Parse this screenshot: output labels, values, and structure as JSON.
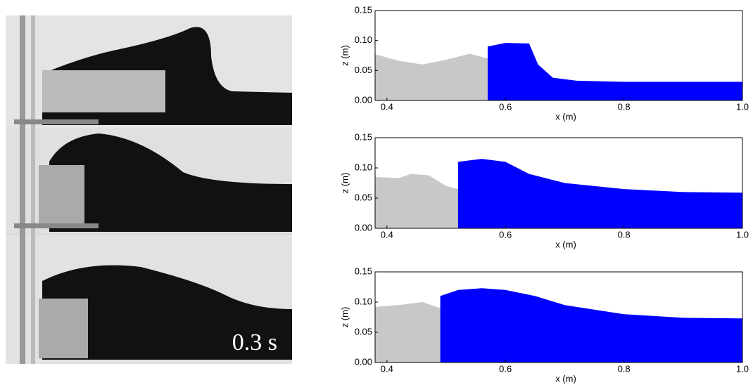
{
  "photo": {
    "label": "0.3 s"
  },
  "chart_data": [
    {
      "type": "area",
      "xlabel": "x (m)",
      "ylabel": "z (m)",
      "x": [
        0.38,
        0.42,
        0.46,
        0.5,
        0.54,
        0.57,
        0.6,
        0.64,
        0.655,
        0.68,
        0.72,
        0.8,
        0.9,
        1.0
      ],
      "series": [
        {
          "color": "#c8c8c8",
          "values": [
            0.077,
            0.066,
            0.06,
            0.068,
            0.078,
            0.07,
            null,
            null,
            null,
            null,
            null,
            null,
            null,
            null
          ]
        },
        {
          "color": "#0000ff",
          "values": [
            null,
            null,
            null,
            null,
            null,
            0.09,
            0.096,
            0.095,
            0.06,
            0.038,
            0.033,
            0.031,
            0.031,
            0.031
          ]
        }
      ],
      "xlim": [
        0.38,
        1.0
      ],
      "ylim": [
        0,
        0.15
      ],
      "xticks": [
        0.4,
        0.6,
        0.8,
        {
          "value": 1.0,
          "label": "1.0"
        }
      ],
      "yticks": [
        {
          "value": 0,
          "label": "0.00"
        },
        {
          "value": 0.05,
          "label": "0.05"
        },
        {
          "value": 0.1,
          "label": "0.10"
        },
        {
          "value": 0.15,
          "label": "0.15"
        }
      ]
    },
    {
      "type": "area",
      "xlabel": "x (m)",
      "ylabel": "z (m)",
      "x": [
        0.38,
        0.42,
        0.44,
        0.47,
        0.5,
        0.52,
        0.56,
        0.6,
        0.64,
        0.7,
        0.8,
        0.9,
        1.0
      ],
      "series": [
        {
          "color": "#c8c8c8",
          "values": [
            0.085,
            0.083,
            0.09,
            0.088,
            0.07,
            0.065,
            null,
            null,
            null,
            null,
            null,
            null,
            null
          ]
        },
        {
          "color": "#0000ff",
          "values": [
            null,
            null,
            null,
            null,
            null,
            0.11,
            0.115,
            0.11,
            0.09,
            0.075,
            0.065,
            0.06,
            0.059
          ]
        }
      ],
      "xlim": [
        0.38,
        1.0
      ],
      "ylim": [
        0,
        0.15
      ],
      "xticks": [
        0.4,
        0.6,
        0.8,
        {
          "value": 1.0,
          "label": "1.0"
        }
      ],
      "yticks": [
        {
          "value": 0,
          "label": "0.00"
        },
        {
          "value": 0.05,
          "label": "0.05"
        },
        {
          "value": 0.1,
          "label": "0.10"
        },
        {
          "value": 0.15,
          "label": "0.15"
        }
      ]
    },
    {
      "type": "area",
      "xlabel": "x (m)",
      "ylabel": "z (m)",
      "x": [
        0.38,
        0.42,
        0.46,
        0.49,
        0.52,
        0.56,
        0.6,
        0.65,
        0.7,
        0.8,
        0.9,
        1.0
      ],
      "series": [
        {
          "color": "#c8c8c8",
          "values": [
            0.092,
            0.095,
            0.1,
            0.09,
            null,
            null,
            null,
            null,
            null,
            null,
            null,
            null
          ]
        },
        {
          "color": "#0000ff",
          "values": [
            null,
            null,
            null,
            0.11,
            0.12,
            0.123,
            0.12,
            0.11,
            0.095,
            0.08,
            0.074,
            0.073
          ]
        }
      ],
      "xlim": [
        0.38,
        1.0
      ],
      "ylim": [
        0,
        0.15
      ],
      "xticks": [
        0.4,
        0.6,
        0.8,
        {
          "value": 1.0,
          "label": "1.0"
        }
      ],
      "yticks": [
        {
          "value": 0,
          "label": "0.00"
        },
        {
          "value": 0.05,
          "label": "0.05"
        },
        {
          "value": 0.1,
          "label": "0.10"
        },
        {
          "value": 0.15,
          "label": "0.15"
        }
      ]
    }
  ]
}
